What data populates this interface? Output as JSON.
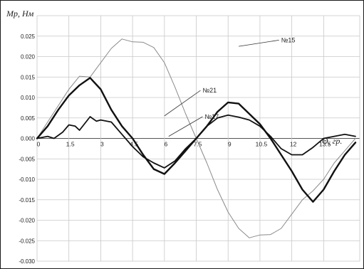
{
  "chart_data": {
    "type": "line",
    "ylabel": "Mр, Нм",
    "xlabel": "Θ, гр.",
    "xlim": [
      0,
      15.2
    ],
    "ylim": [
      -0.03,
      0.03
    ],
    "x_ticks": [
      0,
      1.5,
      3,
      4.5,
      6,
      7.5,
      9,
      10.5,
      12,
      13.5
    ],
    "x_tick_labels": [
      "0",
      "1.5",
      "3",
      "4.5",
      "6",
      "7.5",
      "9",
      "10.5",
      "12",
      "13.5"
    ],
    "y_ticks": [
      0.025,
      0.02,
      0.015,
      0.01,
      0.005,
      0,
      -0.005,
      -0.01,
      -0.015,
      -0.02,
      -0.025,
      -0.03
    ],
    "y_tick_labels": [
      "0.025",
      "0.020",
      "0.015",
      "0.010",
      "0.005",
      "0.000",
      "-0.005",
      "-0.010",
      "-0.015",
      "-0.020",
      "-0.025",
      "-0.030"
    ],
    "grid": true,
    "series": [
      {
        "name": "№15",
        "color": "#8a8a8a",
        "stroke_weight": "thin",
        "label_at": [
          13.6,
          0.0245
        ],
        "points": [
          [
            0,
            0
          ],
          [
            0.5,
            0.004
          ],
          [
            1,
            0.008
          ],
          [
            1.5,
            0.012
          ],
          [
            2,
            0.0152
          ],
          [
            2.5,
            0.015
          ],
          [
            3,
            0.0185
          ],
          [
            3.5,
            0.022
          ],
          [
            4,
            0.0243
          ],
          [
            4.5,
            0.0236
          ],
          [
            5,
            0.0235
          ],
          [
            5.5,
            0.0222
          ],
          [
            6,
            0.0185
          ],
          [
            6.5,
            0.0125
          ],
          [
            7,
            0.006
          ],
          [
            7.5,
            0
          ],
          [
            8,
            -0.006
          ],
          [
            8.5,
            -0.0125
          ],
          [
            9,
            -0.018
          ],
          [
            9.5,
            -0.022
          ],
          [
            10,
            -0.0243
          ],
          [
            10.5,
            -0.0236
          ],
          [
            11,
            -0.0235
          ],
          [
            11.5,
            -0.022
          ],
          [
            12,
            -0.0185
          ],
          [
            12.5,
            -0.015
          ],
          [
            13,
            -0.0128
          ],
          [
            13.5,
            -0.01
          ],
          [
            14,
            -0.006
          ],
          [
            14.5,
            -0.003
          ],
          [
            15,
            0
          ]
        ]
      },
      {
        "name": "№21",
        "color": "#111111",
        "stroke_weight": "bold",
        "label_at": [
          7.6,
          0.0105
        ],
        "points": [
          [
            0,
            0
          ],
          [
            0.5,
            0.003
          ],
          [
            1,
            0.007
          ],
          [
            1.5,
            0.0105
          ],
          [
            2,
            0.013
          ],
          [
            2.5,
            0.0148
          ],
          [
            3,
            0.012
          ],
          [
            3.5,
            0.007
          ],
          [
            4,
            0.003
          ],
          [
            4.5,
            0
          ],
          [
            5,
            -0.004
          ],
          [
            5.5,
            -0.0075
          ],
          [
            6,
            -0.0087
          ],
          [
            6.5,
            -0.006
          ],
          [
            7,
            -0.003
          ],
          [
            7.5,
            0
          ],
          [
            8,
            0.003
          ],
          [
            8.5,
            0.0065
          ],
          [
            9,
            0.0088
          ],
          [
            9.5,
            0.0085
          ],
          [
            10,
            0.006
          ],
          [
            10.5,
            0.0035
          ],
          [
            11,
            0
          ],
          [
            11.5,
            -0.004
          ],
          [
            12,
            -0.008
          ],
          [
            12.5,
            -0.0125
          ],
          [
            13,
            -0.0155
          ],
          [
            13.5,
            -0.0125
          ],
          [
            14,
            -0.008
          ],
          [
            14.5,
            -0.004
          ],
          [
            15,
            -0.001
          ]
        ]
      },
      {
        "name": "№17",
        "color": "#111111",
        "stroke_weight": "medium",
        "label_at": [
          7.8,
          0.0045
        ],
        "points": [
          [
            0,
            0
          ],
          [
            0.5,
            0.0005
          ],
          [
            0.8,
            0
          ],
          [
            1.2,
            0.0015
          ],
          [
            1.5,
            0.0033
          ],
          [
            1.8,
            0.003
          ],
          [
            2,
            0.002
          ],
          [
            2.5,
            0.0053
          ],
          [
            2.8,
            0.0042
          ],
          [
            3,
            0.0045
          ],
          [
            3.5,
            0.004
          ],
          [
            4,
            0.001
          ],
          [
            4.5,
            -0.002
          ],
          [
            5,
            -0.0045
          ],
          [
            5.5,
            -0.006
          ],
          [
            6,
            -0.0072
          ],
          [
            6.5,
            -0.0055
          ],
          [
            7,
            -0.0025
          ],
          [
            7.5,
            0
          ],
          [
            8,
            0.003
          ],
          [
            8.5,
            0.005
          ],
          [
            9,
            0.0057
          ],
          [
            9.5,
            0.0052
          ],
          [
            10,
            0.0045
          ],
          [
            10.5,
            0.003
          ],
          [
            11,
            0.0005
          ],
          [
            11.5,
            -0.0025
          ],
          [
            12,
            -0.004
          ],
          [
            12.5,
            -0.004
          ],
          [
            13,
            -0.0022
          ],
          [
            13.5,
            0
          ],
          [
            14,
            0.0005
          ],
          [
            14.5,
            0.001
          ],
          [
            15,
            0.0005
          ]
        ]
      }
    ]
  }
}
